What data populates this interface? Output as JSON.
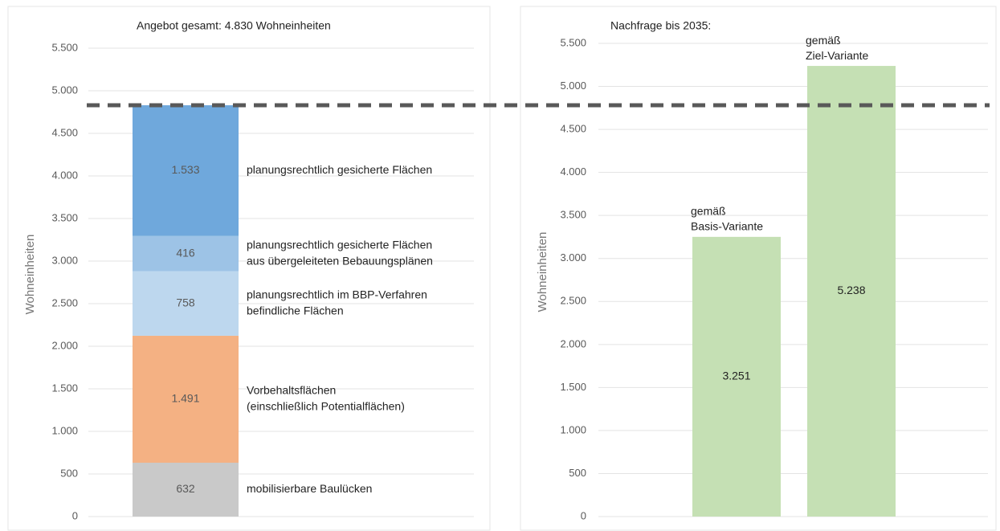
{
  "chart_data": [
    {
      "type": "stacked_bar",
      "title": "Angebot gesamt: 4.830 Wohneinheiten",
      "ylabel": "Wohneinheiten",
      "ylim": [
        0,
        5500
      ],
      "yticks": [
        0,
        500,
        {
          "value": 1000,
          "label": "1.000"
        },
        {
          "value": 1500,
          "label": "1.500"
        },
        {
          "value": 2000,
          "label": "2.000"
        },
        {
          "value": 2500,
          "label": "2.500"
        },
        {
          "value": 3000,
          "label": "3.000"
        },
        {
          "value": 3500,
          "label": "3.500"
        },
        {
          "value": 4000,
          "label": "4.000"
        },
        {
          "value": 4500,
          "label": "4.500"
        },
        {
          "value": 5000,
          "label": "5.000"
        },
        {
          "value": 5500,
          "label": "5.500"
        }
      ],
      "grid": true,
      "reference_line": 4830,
      "series": [
        {
          "name": [
            "mobilisierbare Baulücken"
          ],
          "color": "#c9c9c9",
          "values": [
            632
          ],
          "value_labels": [
            "632"
          ]
        },
        {
          "name": [
            "Vorbehaltsflächen",
            "(einschließlich Potentialflächen)"
          ],
          "color": "#f4b183",
          "values": [
            1491
          ],
          "value_labels": [
            "1.491"
          ]
        },
        {
          "name": [
            "planungsrechtlich im BBP-Verfahren",
            "befindliche Flächen"
          ],
          "color": "#bdd7ee",
          "values": [
            758
          ],
          "value_labels": [
            "758"
          ]
        },
        {
          "name": [
            "planungsrechtlich gesicherte Flächen",
            "aus übergeleiteten Bebauungsplänen"
          ],
          "color": "#9dc3e6",
          "values": [
            416
          ],
          "value_labels": [
            "416"
          ]
        },
        {
          "name": [
            "planungsrechtlich gesicherte Flächen"
          ],
          "color": "#6fa8dc",
          "values": [
            1533
          ],
          "value_labels": [
            "1.533"
          ]
        }
      ]
    },
    {
      "type": "bar",
      "title": "Nachfrage bis 2035:",
      "ylabel": "Wohneinheiten",
      "ylim": [
        0,
        5500
      ],
      "yticks": [
        0,
        500,
        {
          "value": 1000,
          "label": "1.000"
        },
        {
          "value": 1500,
          "label": "1.500"
        },
        {
          "value": 2000,
          "label": "2.000"
        },
        {
          "value": 2500,
          "label": "2.500"
        },
        {
          "value": 3000,
          "label": "3.000"
        },
        {
          "value": 3500,
          "label": "3.500"
        },
        {
          "value": 4000,
          "label": "4.000"
        },
        {
          "value": 4500,
          "label": "4.500"
        },
        {
          "value": 5000,
          "label": "5.000"
        },
        {
          "value": 5500,
          "label": "5.500"
        }
      ],
      "grid": true,
      "color": "#c5e0b4",
      "categories": [
        [
          "gemäß",
          "Basis-Variante"
        ],
        [
          "gemäß",
          "Ziel-Variante"
        ]
      ],
      "values": [
        3251,
        5238
      ],
      "value_labels": [
        "3.251",
        "5.238"
      ]
    }
  ]
}
